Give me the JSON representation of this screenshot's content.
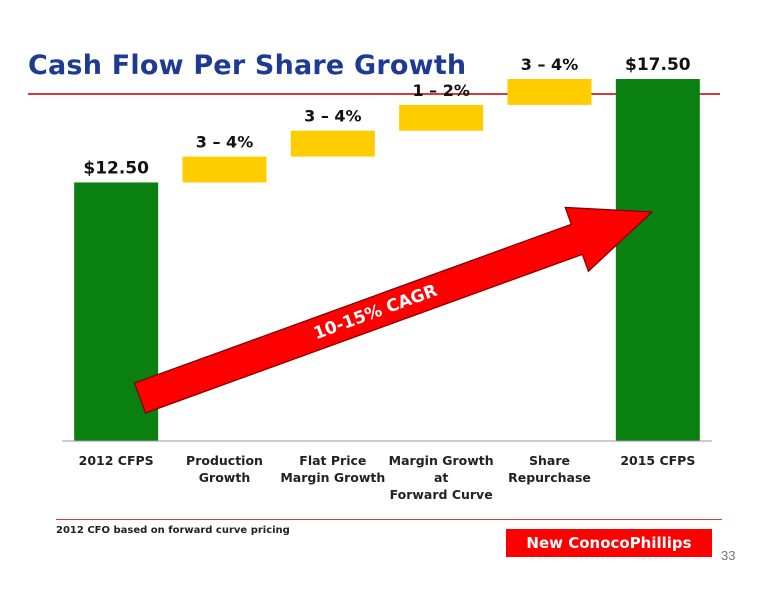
{
  "title": "Cash Flow Per Share Growth",
  "footnote": "2012 CFO based on forward curve pricing",
  "brand": "New ConocoPhillips",
  "page_number": "33",
  "colors": {
    "title": "#1f3a93",
    "total_bar": "#0a8010",
    "increment_bar": "#ffcc00",
    "arrow": "#ff0000",
    "rule": "#d63b3b"
  },
  "chart_data": {
    "type": "bar",
    "subtype": "waterfall",
    "categories": [
      "2012 CFPS",
      "Production\nGrowth",
      "Flat Price\nMargin Growth",
      "Margin Growth at\nForward Curve",
      "Share\nRepurchase",
      "2015 CFPS"
    ],
    "bars": [
      {
        "kind": "total",
        "value": 12.5,
        "label": "$12.50"
      },
      {
        "kind": "increment",
        "label": "3 – 4%"
      },
      {
        "kind": "increment",
        "label": "3 – 4%"
      },
      {
        "kind": "increment",
        "label": "1 – 2%"
      },
      {
        "kind": "increment",
        "label": "3 – 4%"
      },
      {
        "kind": "total",
        "value": 17.5,
        "label": "$17.50"
      }
    ],
    "annotation": "10-15% CAGR",
    "ylim": [
      0,
      19
    ]
  }
}
